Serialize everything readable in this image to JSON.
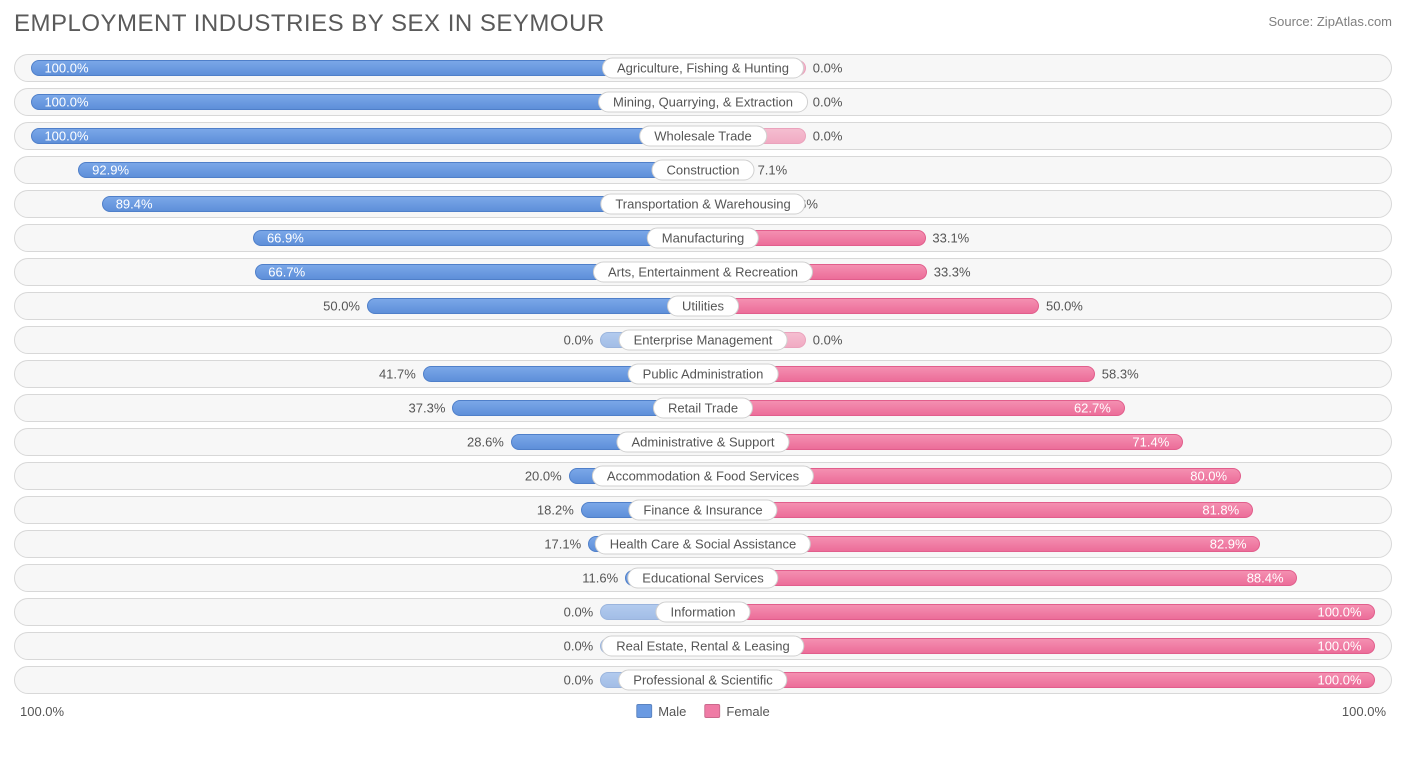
{
  "title": "EMPLOYMENT INDUSTRIES BY SEX IN SEYMOUR",
  "source": "Source: ZipAtlas.com",
  "chart": {
    "type": "diverging-bar",
    "male_color": "#6a9ae2",
    "male_border": "#4f7fc9",
    "female_color": "#ef7ba5",
    "female_border": "#e15e8c",
    "row_bg": "#f7f7f7",
    "row_border": "#d8d8d8",
    "label_bg": "#ffffff",
    "label_border": "#d0d0d0",
    "text_color": "#555555",
    "title_color": "#5a5a5a",
    "font_family": "Arial",
    "title_fontsize": 24,
    "label_fontsize": 13,
    "empty_bar_pct": 15,
    "male_bar_origin_pct": 60,
    "female_bar_origin_pct": 10,
    "rows": [
      {
        "category": "Agriculture, Fishing & Hunting",
        "male": 100.0,
        "female": 0.0
      },
      {
        "category": "Mining, Quarrying, & Extraction",
        "male": 100.0,
        "female": 0.0
      },
      {
        "category": "Wholesale Trade",
        "male": 100.0,
        "female": 0.0
      },
      {
        "category": "Construction",
        "male": 92.9,
        "female": 7.1
      },
      {
        "category": "Transportation & Warehousing",
        "male": 89.4,
        "female": 10.6
      },
      {
        "category": "Manufacturing",
        "male": 66.9,
        "female": 33.1
      },
      {
        "category": "Arts, Entertainment & Recreation",
        "male": 66.7,
        "female": 33.3
      },
      {
        "category": "Utilities",
        "male": 50.0,
        "female": 50.0
      },
      {
        "category": "Enterprise Management",
        "male": 0.0,
        "female": 0.0
      },
      {
        "category": "Public Administration",
        "male": 41.7,
        "female": 58.3
      },
      {
        "category": "Retail Trade",
        "male": 37.3,
        "female": 62.7
      },
      {
        "category": "Administrative & Support",
        "male": 28.6,
        "female": 71.4
      },
      {
        "category": "Accommodation & Food Services",
        "male": 20.0,
        "female": 80.0
      },
      {
        "category": "Finance & Insurance",
        "male": 18.2,
        "female": 81.8
      },
      {
        "category": "Health Care & Social Assistance",
        "male": 17.1,
        "female": 82.9
      },
      {
        "category": "Educational Services",
        "male": 11.6,
        "female": 88.4
      },
      {
        "category": "Information",
        "male": 0.0,
        "female": 100.0
      },
      {
        "category": "Real Estate, Rental & Leasing",
        "male": 0.0,
        "female": 100.0
      },
      {
        "category": "Professional & Scientific",
        "male": 0.0,
        "female": 100.0
      }
    ],
    "axis": {
      "left": "100.0%",
      "right": "100.0%"
    },
    "legend": {
      "male": "Male",
      "female": "Female"
    }
  }
}
